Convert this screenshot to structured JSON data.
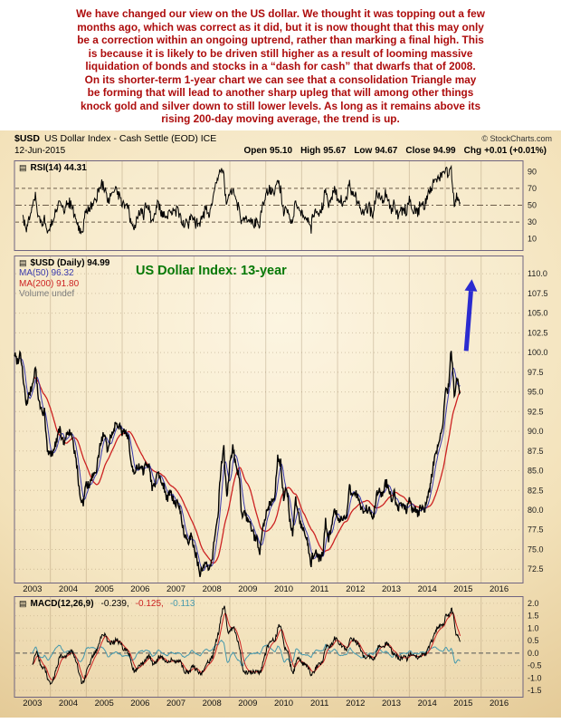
{
  "commentary": {
    "lines": [
      "We have changed our view on the US dollar. We thought it was topping out a few",
      "months ago, which was correct as it did, but it is now thought that this may only",
      "be a correction within an ongoing uptrend, rather than marking a final high. This",
      "is because it is likely to be driven still higher as a result of looming massive",
      "liquidation of bonds and stocks in a “dash for cash” that dwarfs that of 2008.",
      "On its shorter-term 1-year chart we can see that a consolidation Triangle may",
      "be forming that will lead to another sharp upleg that will among other things",
      "knock gold and silver down to still lower levels. As long as it remains above its",
      "rising 200-day moving average, the trend is up."
    ]
  },
  "header": {
    "symbol": "$USD",
    "title": "US Dollar Index - Cash Settle (EOD) ICE",
    "copyright": "© StockCharts.com",
    "date": "12-Jun-2015",
    "quote": [
      {
        "label": "Open",
        "value": "95.10"
      },
      {
        "label": "High",
        "value": "95.67"
      },
      {
        "label": "Low",
        "value": "94.67"
      },
      {
        "label": "Close",
        "value": "94.99"
      },
      {
        "label": "Chg",
        "value": "+0.01 (+0.01%)"
      }
    ]
  },
  "icons": {
    "series_glyph": "▤"
  },
  "rsi_panel": {
    "legend": "RSI(14) 44.31"
  },
  "main_panel": {
    "legend_symbol": "$USD (Daily) 94.99",
    "legend_ma50": "MA(50) 96.32",
    "legend_ma200": "MA(200) 91.80",
    "legend_volume": "Volume undef",
    "annotation": "US Dollar Index: 13-year"
  },
  "macd_panel": {
    "legend_name": "MACD(12,26,9)",
    "values": [
      "-0.239,",
      "-0.125,",
      "-0.113"
    ]
  },
  "colors": {
    "commentary": "#ad0c0c",
    "price": "#000000",
    "ma50": "#3a3aad",
    "ma200": "#cc2222",
    "macd_line": "#000000",
    "macd_signal": "#cc2222",
    "macd_hist": "#4699ad",
    "arrow": "#2b2bd0",
    "annotation": "#067806",
    "background_center": "#fbf2dc",
    "background_edge": "#dcbd84"
  },
  "chart_data": {
    "type": "line",
    "title": "US Dollar Index: 13-year",
    "x_unit": "months since Jan 2003",
    "x_axis_years": [
      2003,
      2004,
      2005,
      2006,
      2007,
      2008,
      2009,
      2010,
      2011,
      2012,
      2013,
      2014,
      2015,
      2016
    ],
    "price": {
      "name": "$USD US Dollar Index, monthly approx closes Jan 2003 - Jun 2015",
      "ylim": [
        70.8,
        112.2
      ],
      "y_ticks": [
        110,
        107.5,
        105,
        102.5,
        100,
        97.5,
        95,
        92.5,
        90,
        87.5,
        85,
        82.5,
        80,
        77.5,
        75,
        72.5
      ],
      "values": [
        99.8,
        98.9,
        100.1,
        96.5,
        93.2,
        94.7,
        95.8,
        98.2,
        93.9,
        92.7,
        92.4,
        87.4,
        87.1,
        87.5,
        88.8,
        90.4,
        88.7,
        88.9,
        90.2,
        89.3,
        87.7,
        85.1,
        81.6,
        80.9,
        83.5,
        82.8,
        84.3,
        84.2,
        86.6,
        89.0,
        89.5,
        87.6,
        89.3,
        89.9,
        91.3,
        90.8,
        89.6,
        90.1,
        89.4,
        86.0,
        84.2,
        85.6,
        85.2,
        85.0,
        85.8,
        85.9,
        82.9,
        83.4,
        85.0,
        83.9,
        83.0,
        81.5,
        82.2,
        81.4,
        80.7,
        80.9,
        78.3,
        76.6,
        75.6,
        76.7,
        75.5,
        73.8,
        71.8,
        72.7,
        73.0,
        72.4,
        73.3,
        77.2,
        79.2,
        85.4,
        87.9,
        81.2,
        85.7,
        88.1,
        85.3,
        84.5,
        79.4,
        80.1,
        78.2,
        78.1,
        76.6,
        76.4,
        74.9,
        77.9,
        79.4,
        80.5,
        81.1,
        81.8,
        86.5,
        86.0,
        81.6,
        83.1,
        78.8,
        77.2,
        81.3,
        79.1,
        77.8,
        76.9,
        75.8,
        72.9,
        74.7,
        74.4,
        73.8,
        74.2,
        78.7,
        76.1,
        78.3,
        80.2,
        79.2,
        78.8,
        79.0,
        78.7,
        83.0,
        81.7,
        82.6,
        81.3,
        79.8,
        80.1,
        80.2,
        79.8,
        79.3,
        81.9,
        83.1,
        81.6,
        83.4,
        83.2,
        81.4,
        82.0,
        80.2,
        80.3,
        80.8,
        80.1,
        81.2,
        79.8,
        80.1,
        79.6,
        80.4,
        79.9,
        81.4,
        82.8,
        86.0,
        87.1,
        88.4,
        90.3,
        94.9,
        95.4,
        100.3,
        94.7,
        96.9,
        94.99
      ]
    },
    "indicators": {
      "rsi": {
        "name": "RSI(14)",
        "period": 14,
        "last": 44.31,
        "ticks": [
          90,
          70,
          50,
          30,
          10
        ]
      },
      "ma50": {
        "name": "MA(50)",
        "last": 96.32
      },
      "ma200": {
        "name": "MA(200)",
        "last": 91.8
      },
      "macd": {
        "name": "MACD(12,26,9)",
        "fast": 12,
        "slow": 26,
        "signal": 9,
        "last_macd": -0.239,
        "last_signal": -0.125,
        "last_hist": -0.113,
        "ticks": [
          2,
          1.5,
          1,
          0.5,
          0,
          -0.5,
          -1,
          -1.5
        ]
      }
    },
    "annotations": [
      {
        "type": "text",
        "text": "US Dollar Index: 13-year",
        "color": "#067806"
      },
      {
        "type": "arrow",
        "direction": "up",
        "color": "#2b2bd0",
        "x_month": 151,
        "from_value": 100.2,
        "to_value": 109.3
      }
    ]
  }
}
